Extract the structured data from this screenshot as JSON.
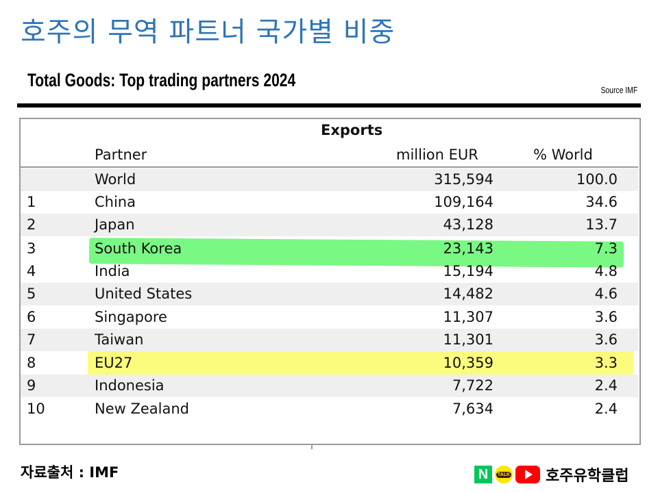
{
  "slide": {
    "title": "호주의 무역 파트너 국가별 비중"
  },
  "table": {
    "title": "Total Goods: Top trading partners 2024",
    "source": "Source IMF",
    "section": "Exports",
    "headers": {
      "partner": "Partner",
      "eur": "million EUR",
      "pct": "% World"
    },
    "rows": [
      {
        "rank": "",
        "partner": "World",
        "eur": "315,594",
        "pct": "100.0"
      },
      {
        "rank": "1",
        "partner": "China",
        "eur": "109,164",
        "pct": "34.6"
      },
      {
        "rank": "2",
        "partner": "Japan",
        "eur": "43,128",
        "pct": "13.7"
      },
      {
        "rank": "3",
        "partner": "South Korea",
        "eur": "23,143",
        "pct": "7.3"
      },
      {
        "rank": "4",
        "partner": "India",
        "eur": "15,194",
        "pct": "4.8"
      },
      {
        "rank": "5",
        "partner": "United States",
        "eur": "14,482",
        "pct": "4.6"
      },
      {
        "rank": "6",
        "partner": "Singapore",
        "eur": "11,307",
        "pct": "3.6"
      },
      {
        "rank": "7",
        "partner": "Taiwan",
        "eur": "11,301",
        "pct": "3.6"
      },
      {
        "rank": "8",
        "partner": "EU27",
        "eur": "10,359",
        "pct": "3.3"
      },
      {
        "rank": "9",
        "partner": "Indonesia",
        "eur": "7,722",
        "pct": "2.4"
      },
      {
        "rank": "10",
        "partner": "New Zealand",
        "eur": "7,634",
        "pct": "2.4"
      }
    ],
    "highlights": {
      "green_row": "South Korea",
      "yellow_row": "EU27",
      "green_color": "#4cf55a",
      "yellow_color": "#fafa46"
    }
  },
  "footer": {
    "source": "자료출처 : IMF",
    "brand_name": "호주유학클럽",
    "brand_icons": [
      "naver-n-icon",
      "kakaotalk-icon",
      "youtube-icon"
    ],
    "naver_letter": "N",
    "talk_label": "TALK"
  }
}
